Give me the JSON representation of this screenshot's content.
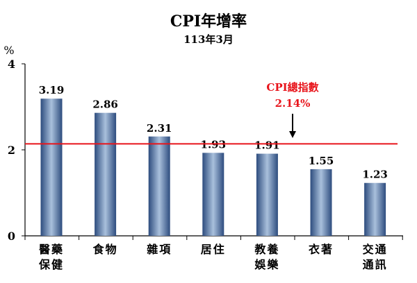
{
  "chart_data": {
    "type": "bar",
    "title": "CPI年增率",
    "subtitle": "113年3月",
    "ylabel": "%",
    "ylim": [
      0,
      4
    ],
    "yticks": [
      0,
      2,
      4
    ],
    "categories": [
      [
        "醫藥",
        "保健"
      ],
      [
        "食物"
      ],
      [
        "雜項"
      ],
      [
        "居住"
      ],
      [
        "教養",
        "娛樂"
      ],
      [
        "衣著"
      ],
      [
        "交通",
        "通訊"
      ]
    ],
    "values": [
      3.19,
      2.86,
      2.31,
      1.93,
      1.91,
      1.55,
      1.23
    ],
    "value_labels": [
      "3.19",
      "2.86",
      "2.31",
      "1.93",
      "1.91",
      "1.55",
      "1.23"
    ],
    "reference_line": {
      "value": 2.14,
      "label": "CPI總指數",
      "value_label": "2.14%",
      "color": "#e8141b"
    },
    "bar_gradient": [
      "#2d4c7e",
      "#a9c0dc",
      "#2d4c7e"
    ],
    "grid": false
  }
}
